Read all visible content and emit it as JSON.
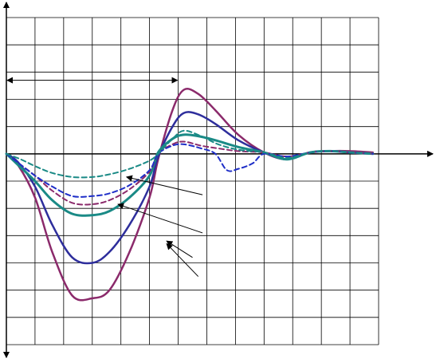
{
  "chart_data": {
    "type": "line",
    "title": "",
    "xlabel": "",
    "ylabel": "",
    "xlim": [
      0,
      13
    ],
    "ylim": [
      -7,
      5
    ],
    "grid": true,
    "axis_color": "#000000",
    "grid_color": "#000000",
    "legend": "none",
    "series": [
      {
        "color": "#8b2a6b",
        "style": "solid",
        "width": 2.5,
        "points": [
          [
            0,
            0
          ],
          [
            0.4,
            -0.4
          ],
          [
            1,
            -1.6
          ],
          [
            1.6,
            -3.6
          ],
          [
            2.3,
            -5.2
          ],
          [
            3,
            -5.3
          ],
          [
            3.6,
            -5.0
          ],
          [
            4.3,
            -3.6
          ],
          [
            5.0,
            -1.6
          ],
          [
            5.3,
            -0.2
          ],
          [
            5.8,
            1.6
          ],
          [
            6.2,
            2.35
          ],
          [
            6.7,
            2.2
          ],
          [
            7.3,
            1.6
          ],
          [
            8.1,
            0.7
          ],
          [
            9.0,
            0.05
          ],
          [
            9.8,
            -0.2
          ],
          [
            10.6,
            0.05
          ],
          [
            11.3,
            0.1
          ],
          [
            12,
            0.1
          ],
          [
            12.8,
            0.05
          ]
        ]
      },
      {
        "color": "#2e2e9c",
        "style": "solid",
        "width": 2.5,
        "points": [
          [
            0,
            0
          ],
          [
            0.4,
            -0.3
          ],
          [
            1,
            -1.2
          ],
          [
            1.6,
            -2.6
          ],
          [
            2.3,
            -3.8
          ],
          [
            3,
            -4.0
          ],
          [
            3.6,
            -3.6
          ],
          [
            4.3,
            -2.6
          ],
          [
            5.0,
            -1.2
          ],
          [
            5.3,
            -0.1
          ],
          [
            5.8,
            1.0
          ],
          [
            6.2,
            1.5
          ],
          [
            6.7,
            1.45
          ],
          [
            7.3,
            1.1
          ],
          [
            8.1,
            0.5
          ],
          [
            9.0,
            0.05
          ],
          [
            9.8,
            -0.2
          ],
          [
            10.6,
            0.05
          ],
          [
            11.3,
            0.1
          ],
          [
            12,
            0.05
          ],
          [
            12.8,
            0
          ]
        ]
      },
      {
        "color": "#1a8a86",
        "style": "solid",
        "width": 3,
        "points": [
          [
            0,
            0
          ],
          [
            0.4,
            -0.4
          ],
          [
            1,
            -1.0
          ],
          [
            1.6,
            -1.7
          ],
          [
            2.3,
            -2.2
          ],
          [
            3,
            -2.25
          ],
          [
            3.6,
            -2.1
          ],
          [
            4.3,
            -1.6
          ],
          [
            5.0,
            -0.8
          ],
          [
            5.3,
            0.05
          ],
          [
            5.8,
            0.55
          ],
          [
            6.2,
            0.7
          ],
          [
            6.7,
            0.65
          ],
          [
            7.3,
            0.5
          ],
          [
            8.1,
            0.25
          ],
          [
            9.0,
            0.05
          ],
          [
            9.8,
            -0.2
          ],
          [
            10.6,
            0.05
          ],
          [
            11.3,
            0.1
          ],
          [
            12,
            0.05
          ],
          [
            12.8,
            0
          ]
        ]
      },
      {
        "color": "#8b2a6b",
        "style": "dashed",
        "width": 2,
        "points": [
          [
            0,
            0
          ],
          [
            0.5,
            -0.4
          ],
          [
            1,
            -0.8
          ],
          [
            1.6,
            -1.35
          ],
          [
            2.3,
            -1.8
          ],
          [
            3,
            -1.85
          ],
          [
            3.6,
            -1.7
          ],
          [
            4.3,
            -1.3
          ],
          [
            5.0,
            -0.65
          ],
          [
            5.3,
            0
          ],
          [
            5.8,
            0.35
          ],
          [
            6.2,
            0.45
          ],
          [
            6.8,
            0.3
          ],
          [
            7.4,
            0.2
          ],
          [
            8.1,
            0.1
          ],
          [
            9.0,
            0.05
          ],
          [
            9.8,
            -0.1
          ],
          [
            10.6,
            0.05
          ],
          [
            11.3,
            0.1
          ],
          [
            12,
            0.05
          ],
          [
            12.8,
            0
          ]
        ]
      },
      {
        "color": "#1f2fc8",
        "style": "dashed",
        "width": 2,
        "points": [
          [
            0,
            0
          ],
          [
            0.5,
            -0.4
          ],
          [
            1,
            -0.8
          ],
          [
            1.6,
            -1.2
          ],
          [
            2.3,
            -1.55
          ],
          [
            3,
            -1.55
          ],
          [
            3.6,
            -1.45
          ],
          [
            4.3,
            -1.15
          ],
          [
            5.0,
            -0.6
          ],
          [
            5.3,
            0
          ],
          [
            5.8,
            0.3
          ],
          [
            6.2,
            0.35
          ],
          [
            6.8,
            0.2
          ],
          [
            7.3,
            0
          ],
          [
            7.7,
            -0.6
          ],
          [
            8.1,
            -0.55
          ],
          [
            8.6,
            -0.35
          ],
          [
            9.0,
            0
          ],
          [
            9.8,
            -0.1
          ],
          [
            10.6,
            0.05
          ],
          [
            11.3,
            0.1
          ],
          [
            12,
            0.05
          ],
          [
            12.8,
            0
          ]
        ]
      },
      {
        "color": "#1a8a86",
        "style": "dashed",
        "width": 2,
        "points": [
          [
            0,
            0
          ],
          [
            0.5,
            -0.2
          ],
          [
            1,
            -0.45
          ],
          [
            1.6,
            -0.7
          ],
          [
            2.3,
            -0.85
          ],
          [
            3,
            -0.85
          ],
          [
            3.6,
            -0.75
          ],
          [
            4.3,
            -0.55
          ],
          [
            5.0,
            -0.25
          ],
          [
            5.3,
            0
          ],
          [
            5.8,
            0.55
          ],
          [
            6.2,
            0.85
          ],
          [
            6.8,
            0.65
          ],
          [
            7.4,
            0.35
          ],
          [
            8.1,
            0.15
          ],
          [
            9.0,
            0.05
          ],
          [
            9.8,
            -0.15
          ],
          [
            10.6,
            0.05
          ],
          [
            11.3,
            0.1
          ],
          [
            12,
            0.05
          ],
          [
            12.8,
            0
          ]
        ]
      }
    ],
    "annotations": {
      "bracket": {
        "from_x": 0,
        "to_x": 6,
        "y": 2.7
      },
      "arrows": [
        {
          "from": [
            6.85,
            -1.5
          ],
          "to": [
            4.2,
            -0.85
          ]
        },
        {
          "from": [
            6.85,
            -2.9
          ],
          "to": [
            3.9,
            -1.85
          ]
        },
        {
          "from": [
            6.5,
            -3.8
          ],
          "to": [
            5.6,
            -3.2
          ]
        },
        {
          "from": [
            6.7,
            -4.5
          ],
          "to": [
            5.6,
            -3.3
          ]
        }
      ]
    }
  }
}
